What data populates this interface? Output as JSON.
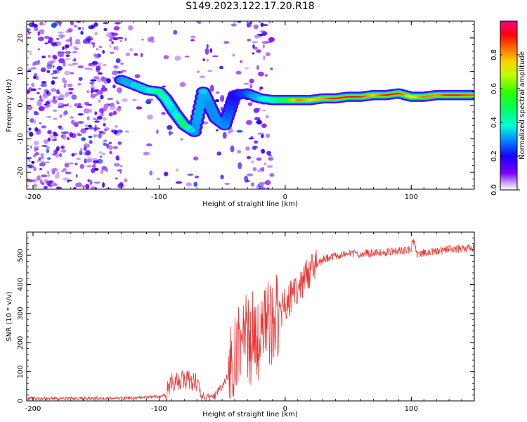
{
  "title": "S149.2023.122.17.20.R18",
  "chart_data": [
    {
      "type": "heatmap",
      "xlabel": "Height of straight line (km)",
      "ylabel": "Frequency (Hz)",
      "xlim": [
        -205,
        150
      ],
      "ylim": [
        -25,
        25
      ],
      "xticks": [
        -200,
        -100,
        0,
        100
      ],
      "xtick_labels": [
        "-200",
        "-100",
        "0",
        "100"
      ],
      "yticks": [
        -20,
        -10,
        0,
        10,
        20
      ],
      "ytick_labels": [
        "-20",
        "-10",
        "0",
        "10",
        "20"
      ],
      "colorbar": {
        "label": "Normalized spectral amplitude",
        "range": [
          0,
          1
        ],
        "ticks": [
          0.0,
          0.2,
          0.4,
          0.6,
          0.8
        ],
        "tick_labels": [
          "0.0",
          "0.2",
          "0.4",
          "0.6",
          "0.8"
        ],
        "colormap": "gist_rainbow_r"
      },
      "ridge": [
        {
          "x": -130,
          "f": 7.5,
          "a": 0.3
        },
        {
          "x": -120,
          "f": 6,
          "a": 0.35
        },
        {
          "x": -110,
          "f": 4.5,
          "a": 0.35
        },
        {
          "x": -100,
          "f": 4,
          "a": 0.45
        },
        {
          "x": -95,
          "f": 2,
          "a": 0.4
        },
        {
          "x": -88,
          "f": -2,
          "a": 0.35
        },
        {
          "x": -80,
          "f": -6,
          "a": 0.5
        },
        {
          "x": -72,
          "f": -8,
          "a": 0.3
        },
        {
          "x": -65,
          "f": 4,
          "a": 0.35
        },
        {
          "x": -60,
          "f": 0,
          "a": 0.3
        },
        {
          "x": -55,
          "f": -4,
          "a": 0.3
        },
        {
          "x": -48,
          "f": -6,
          "a": 0.3
        },
        {
          "x": -40,
          "f": 3,
          "a": 0.2
        },
        {
          "x": -30,
          "f": 3.5,
          "a": 0.25
        },
        {
          "x": -20,
          "f": 2,
          "a": 0.35
        },
        {
          "x": -10,
          "f": 1.5,
          "a": 0.4
        },
        {
          "x": 0,
          "f": 1.5,
          "a": 0.5
        },
        {
          "x": 10,
          "f": 1.5,
          "a": 0.85
        },
        {
          "x": 20,
          "f": 1.5,
          "a": 0.75
        },
        {
          "x": 30,
          "f": 2,
          "a": 0.8
        },
        {
          "x": 40,
          "f": 2,
          "a": 0.95
        },
        {
          "x": 50,
          "f": 2.5,
          "a": 0.95
        },
        {
          "x": 60,
          "f": 2.5,
          "a": 0.9
        },
        {
          "x": 70,
          "f": 3,
          "a": 0.75
        },
        {
          "x": 80,
          "f": 3,
          "a": 0.95
        },
        {
          "x": 90,
          "f": 3.5,
          "a": 0.9
        },
        {
          "x": 100,
          "f": 2.5,
          "a": 0.7
        },
        {
          "x": 110,
          "f": 2.5,
          "a": 0.85
        },
        {
          "x": 120,
          "f": 3,
          "a": 0.8
        },
        {
          "x": 130,
          "f": 3,
          "a": 0.95
        },
        {
          "x": 140,
          "f": 3,
          "a": 0.9
        },
        {
          "x": 150,
          "f": 3,
          "a": 0.85
        }
      ]
    },
    {
      "type": "line",
      "xlabel": "Height of straight line (km)",
      "ylabel": "SNR (10 * v/v)",
      "xlim": [
        -205,
        150
      ],
      "ylim": [
        0,
        580
      ],
      "xticks": [
        -200,
        -100,
        0,
        100
      ],
      "xtick_labels": [
        "-200",
        "-100",
        "0",
        "100"
      ],
      "yticks": [
        0,
        100,
        200,
        300,
        400,
        500
      ],
      "ytick_labels": [
        "0",
        "100",
        "200",
        "300",
        "400",
        "500"
      ],
      "color": "#ee3333",
      "series": [
        {
          "name": "SNR",
          "x": [
            -205,
            -180,
            -150,
            -120,
            -100,
            -95,
            -90,
            -85,
            -80,
            -75,
            -70,
            -65,
            -60,
            -55,
            -50,
            -45,
            -40,
            -35,
            -30,
            -25,
            -20,
            -15,
            -10,
            -5,
            0,
            5,
            10,
            15,
            20,
            25,
            30,
            40,
            50,
            60,
            70,
            80,
            90,
            100,
            101,
            105,
            110,
            120,
            130,
            140,
            150
          ],
          "y": [
            8,
            8,
            9,
            10,
            15,
            20,
            60,
            70,
            75,
            65,
            60,
            15,
            10,
            20,
            50,
            90,
            150,
            190,
            210,
            220,
            230,
            250,
            260,
            300,
            330,
            360,
            390,
            420,
            450,
            470,
            485,
            500,
            505,
            505,
            508,
            510,
            515,
            520,
            560,
            500,
            510,
            515,
            520,
            522,
            525
          ]
        }
      ]
    }
  ]
}
